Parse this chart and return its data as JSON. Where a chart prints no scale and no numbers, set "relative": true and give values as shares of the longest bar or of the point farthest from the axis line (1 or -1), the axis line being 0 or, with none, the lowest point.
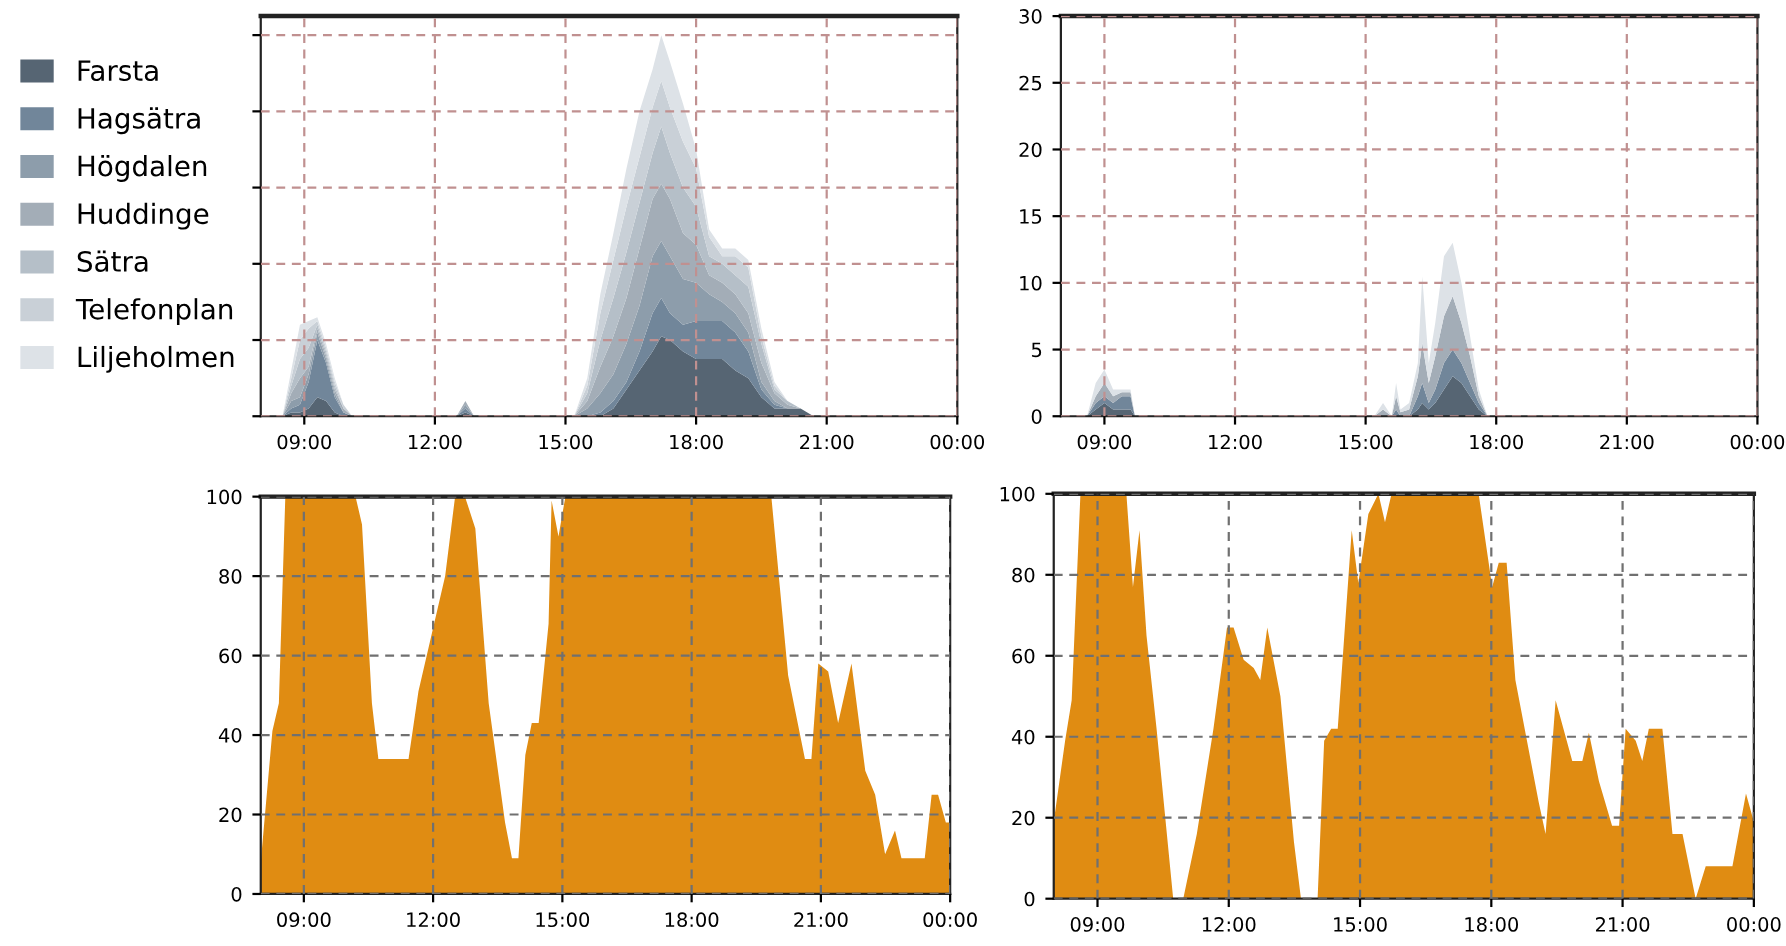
{
  "chart_data": [
    {
      "type": "area",
      "stacked": true,
      "relative": true,
      "legend": "left",
      "grid": true,
      "tick_labels": "x",
      "x": [
        8.5,
        8.7,
        8.9,
        9.1,
        9.3,
        9.5,
        9.7,
        9.9,
        10.1,
        12.5,
        12.7,
        12.9,
        15.2,
        15.5,
        15.8,
        16.1,
        16.4,
        16.7,
        17.0,
        17.2,
        17.4,
        17.7,
        18.0,
        18.3,
        18.6,
        18.9,
        19.2,
        19.5,
        19.8,
        20.1,
        20.4,
        20.7
      ],
      "xlim": [
        8,
        24
      ],
      "xticks": [
        {
          "value": 9,
          "label": "09:00"
        },
        {
          "value": 12,
          "label": "12:00"
        },
        {
          "value": 15,
          "label": "15:00"
        },
        {
          "value": 18,
          "label": "18:00"
        },
        {
          "value": 21,
          "label": "21:00"
        },
        {
          "value": 24,
          "label": "00:00"
        }
      ],
      "series": [
        {
          "name": "Farsta",
          "color": "#566573",
          "values": [
            0,
            0.01,
            0.01,
            0.02,
            0.05,
            0.04,
            0.01,
            0,
            0,
            0,
            0.01,
            0,
            0,
            0,
            0,
            0.02,
            0.07,
            0.12,
            0.17,
            0.21,
            0.2,
            0.17,
            0.15,
            0.15,
            0.15,
            0.12,
            0.1,
            0.05,
            0.02,
            0.02,
            0.02,
            0
          ]
        },
        {
          "name": "Hagsätra",
          "color": "#71869a",
          "values": [
            0,
            0.01,
            0.02,
            0.07,
            0.15,
            0.1,
            0.04,
            0.01,
            0,
            0,
            0.01,
            0,
            0,
            0,
            0.01,
            0.02,
            0.02,
            0.05,
            0.1,
            0.1,
            0.07,
            0.07,
            0.1,
            0.1,
            0.1,
            0.1,
            0.07,
            0.02,
            0.01,
            0,
            0,
            0
          ]
        },
        {
          "name": "Högdalen",
          "color": "#8d9dab",
          "values": [
            0,
            0.02,
            0.02,
            0.02,
            0.02,
            0.01,
            0.01,
            0,
            0,
            0,
            0.01,
            0,
            0,
            0.02,
            0.05,
            0.07,
            0.1,
            0.12,
            0.15,
            0.15,
            0.15,
            0.12,
            0.1,
            0.07,
            0.05,
            0.05,
            0.05,
            0.02,
            0.01,
            0,
            0,
            0
          ]
        },
        {
          "name": "Huddinge",
          "color": "#a3adb7",
          "values": [
            0,
            0.02,
            0.05,
            0.02,
            0.01,
            0.01,
            0.01,
            0.01,
            0,
            0,
            0.01,
            0,
            0,
            0.02,
            0.07,
            0.1,
            0.12,
            0.15,
            0.15,
            0.15,
            0.15,
            0.12,
            0.1,
            0.05,
            0.05,
            0.05,
            0.05,
            0.05,
            0.02,
            0.01,
            0,
            0
          ]
        },
        {
          "name": "Sätra",
          "color": "#b5bfc8",
          "values": [
            0,
            0.02,
            0.05,
            0.05,
            0.01,
            0.01,
            0.01,
            0,
            0,
            0,
            0,
            0,
            0,
            0.02,
            0.07,
            0.1,
            0.12,
            0.12,
            0.12,
            0.15,
            0.12,
            0.12,
            0.1,
            0.05,
            0.05,
            0.05,
            0.07,
            0.05,
            0.01,
            0.01,
            0,
            0
          ]
        },
        {
          "name": "Telefonplan",
          "color": "#c9d0d7",
          "values": [
            0,
            0.02,
            0.05,
            0.05,
            0.01,
            0.01,
            0.01,
            0.01,
            0,
            0,
            0,
            0,
            0,
            0.02,
            0.07,
            0.1,
            0.12,
            0.12,
            0.12,
            0.12,
            0.12,
            0.12,
            0.1,
            0.05,
            0.02,
            0.05,
            0.05,
            0.02,
            0.01,
            0,
            0,
            0
          ]
        },
        {
          "name": "Liljeholmen",
          "color": "#dde2e7",
          "values": [
            0,
            0.02,
            0.04,
            0.02,
            0.01,
            0.01,
            0.01,
            0,
            0,
            0,
            0,
            0,
            0,
            0.02,
            0.05,
            0.07,
            0.1,
            0.12,
            0.1,
            0.12,
            0.12,
            0.1,
            0.05,
            0.02,
            0.02,
            0.02,
            0.02,
            0.02,
            0.01,
            0,
            0,
            0
          ]
        }
      ]
    },
    {
      "type": "area",
      "stacked": true,
      "grid": true,
      "x": [
        8.6,
        8.8,
        9.0,
        9.2,
        9.4,
        9.6,
        9.7,
        15.2,
        15.4,
        15.6,
        15.7,
        15.8,
        16.0,
        16.2,
        16.3,
        16.45,
        16.6,
        16.8,
        17.0,
        17.2,
        17.4,
        17.6,
        17.8
      ],
      "xlim": [
        8,
        24
      ],
      "xticks": [
        {
          "value": 9,
          "label": "09:00"
        },
        {
          "value": 12,
          "label": "12:00"
        },
        {
          "value": 15,
          "label": "15:00"
        },
        {
          "value": 18,
          "label": "18:00"
        },
        {
          "value": 21,
          "label": "21:00"
        },
        {
          "value": 24,
          "label": "00:00"
        }
      ],
      "ylim": [
        0,
        30
      ],
      "yticks": [
        0,
        5,
        10,
        15,
        20,
        25,
        30
      ],
      "series": [
        {
          "color": "#566573",
          "values": [
            0,
            0.5,
            1,
            0.5,
            0.5,
            0.5,
            0,
            0,
            0,
            0,
            0,
            0,
            0,
            0.5,
            1,
            0.5,
            1,
            2,
            3,
            2.5,
            1.5,
            0.5,
            0
          ]
        },
        {
          "color": "#71869a",
          "values": [
            0,
            0.5,
            0.5,
            0.5,
            1,
            1,
            0,
            0,
            0,
            0,
            0.5,
            0,
            0,
            1,
            1.5,
            0.5,
            1,
            2,
            2,
            1.5,
            1,
            0.5,
            0
          ]
        },
        {
          "color": "#a3adb7",
          "values": [
            0,
            0.5,
            1,
            0.5,
            0.3,
            0.3,
            0,
            0,
            0.5,
            0,
            1,
            0.3,
            0.5,
            1.5,
            3,
            1.5,
            2.5,
            3.5,
            4,
            3,
            2,
            0.5,
            0
          ]
        },
        {
          "color": "#dde2e7",
          "values": [
            0,
            1,
            1,
            0.5,
            0.2,
            0.2,
            0,
            0,
            0.5,
            0,
            1,
            0.2,
            0.5,
            1,
            5,
            1.5,
            2.5,
            4.5,
            4,
            3,
            1.5,
            0.5,
            0
          ]
        }
      ]
    },
    {
      "type": "area",
      "grid": true,
      "x": [
        8.0,
        8.27,
        8.42,
        8.57,
        10.2,
        10.35,
        10.58,
        10.73,
        11.43,
        11.66,
        12.28,
        12.51,
        12.74,
        12.98,
        13.29,
        13.67,
        13.83,
        13.98,
        14.14,
        14.29,
        14.45,
        14.68,
        14.75,
        14.91,
        15.07,
        19.85,
        20.24,
        20.63,
        20.78,
        20.94,
        21.17,
        21.4,
        21.71,
        22.03,
        22.26,
        22.49,
        22.72,
        22.87,
        23.41,
        23.57,
        23.72,
        23.9,
        24.0
      ],
      "xlim": [
        8,
        24
      ],
      "xticks": [
        {
          "value": 9,
          "label": "09:00"
        },
        {
          "value": 12,
          "label": "12:00"
        },
        {
          "value": 15,
          "label": "15:00"
        },
        {
          "value": 18,
          "label": "18:00"
        },
        {
          "value": 21,
          "label": "21:00"
        },
        {
          "value": 24,
          "label": "00:00"
        }
      ],
      "ylim": [
        0,
        100
      ],
      "yticks": [
        0,
        20,
        40,
        60,
        80,
        100
      ],
      "series": [
        {
          "color": "#e08c12",
          "values": [
            8,
            41,
            48,
            100,
            100,
            93,
            48,
            34,
            34,
            51,
            80,
            100,
            100,
            92,
            48,
            18,
            9,
            9,
            35,
            43,
            43,
            68,
            99,
            90,
            100,
            100,
            55,
            34,
            34,
            58,
            56,
            43,
            58,
            31,
            25,
            10,
            16,
            9,
            9,
            25,
            25,
            18,
            18
          ]
        }
      ]
    },
    {
      "type": "area",
      "grid": true,
      "x": [
        8.0,
        8.26,
        8.41,
        8.61,
        9.66,
        9.81,
        9.96,
        10.12,
        10.35,
        10.73,
        10.96,
        11.27,
        11.65,
        11.96,
        12.11,
        12.34,
        12.57,
        12.72,
        12.88,
        13.18,
        13.49,
        13.65,
        14.03,
        14.18,
        14.34,
        14.49,
        14.81,
        14.96,
        15.19,
        15.42,
        15.57,
        15.72,
        17.71,
        18.02,
        18.17,
        18.35,
        18.55,
        19.08,
        19.24,
        19.47,
        19.85,
        20.08,
        20.23,
        20.46,
        20.76,
        20.92,
        21.07,
        21.3,
        21.45,
        21.6,
        21.91,
        22.14,
        22.37,
        22.67,
        22.9,
        23.51,
        23.82,
        24.0
      ],
      "xlim": [
        8,
        24
      ],
      "xticks": [
        {
          "value": 9,
          "label": "09:00"
        },
        {
          "value": 12,
          "label": "12:00"
        },
        {
          "value": 15,
          "label": "15:00"
        },
        {
          "value": 18,
          "label": "18:00"
        },
        {
          "value": 21,
          "label": "21:00"
        },
        {
          "value": 24,
          "label": "00:00"
        }
      ],
      "ylim": [
        0,
        100
      ],
      "yticks": [
        0,
        20,
        40,
        60,
        80,
        100
      ],
      "series": [
        {
          "color": "#e08c12",
          "values": [
            19,
            39,
            49,
            100,
            100,
            77,
            91,
            65,
            42,
            0,
            0,
            16,
            42,
            67,
            67,
            59,
            57,
            54,
            67,
            50,
            14,
            0,
            0,
            39,
            42,
            42,
            91,
            78,
            95,
            100,
            93,
            100,
            100,
            77,
            83,
            83,
            54,
            24,
            16,
            49,
            34,
            34,
            41,
            29,
            18,
            18,
            42,
            39,
            34,
            42,
            42,
            16,
            16,
            0,
            8,
            8,
            26,
            19
          ]
        }
      ]
    }
  ]
}
